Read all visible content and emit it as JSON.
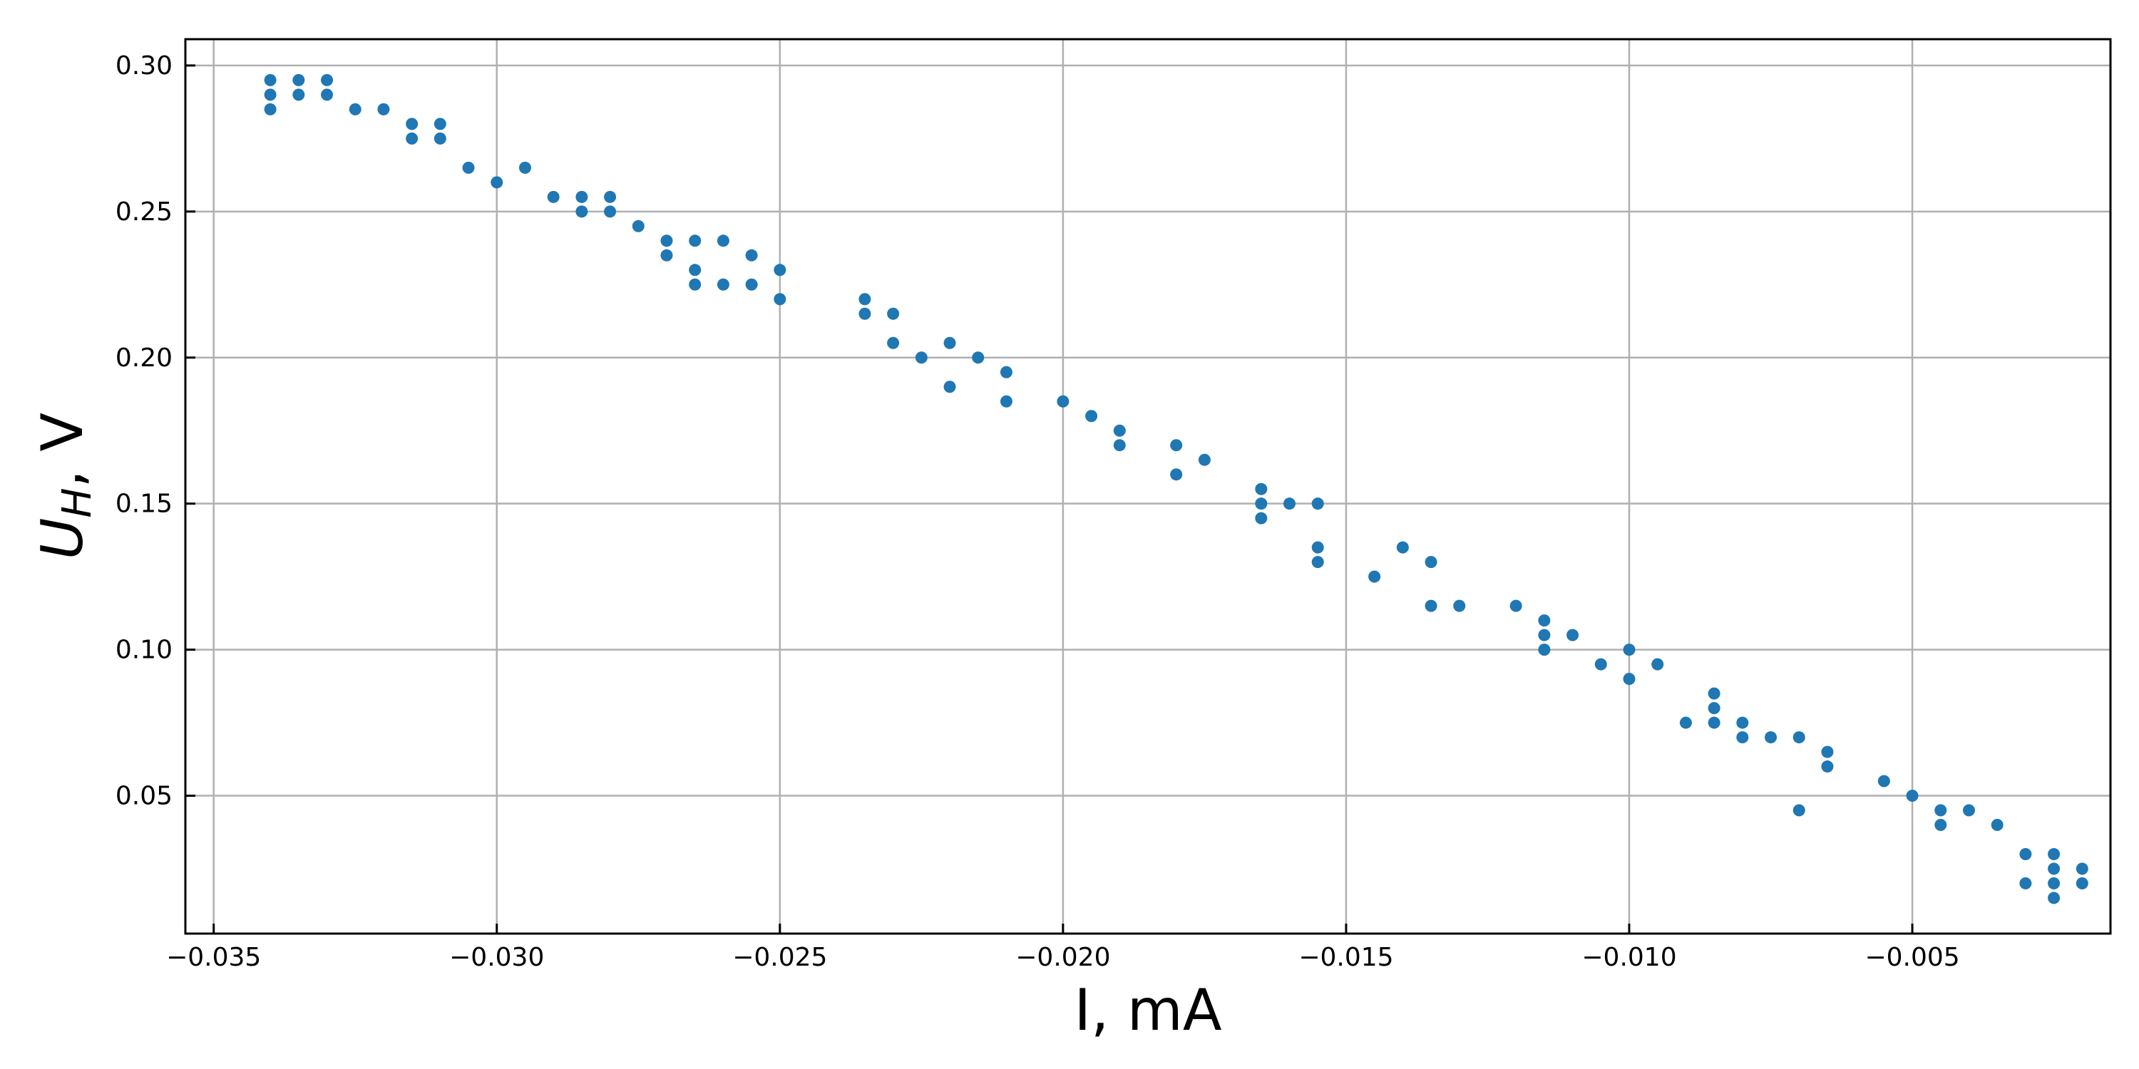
{
  "chart_data": {
    "type": "scatter",
    "xlabel": "I, mA",
    "ylabel": {
      "main": "U",
      "subscript": "H",
      "suffix": ", V"
    },
    "xlim": [
      -0.0355,
      -0.0015
    ],
    "ylim": [
      0.0028,
      0.309
    ],
    "xticks": [
      -0.035,
      -0.03,
      -0.025,
      -0.02,
      -0.015,
      -0.01,
      -0.005
    ],
    "xtick_labels": [
      "−0.035",
      "−0.030",
      "−0.025",
      "−0.020",
      "−0.015",
      "−0.010",
      "−0.005"
    ],
    "yticks": [
      0.05,
      0.1,
      0.15,
      0.2,
      0.25,
      0.3
    ],
    "ytick_labels": [
      "0.05",
      "0.10",
      "0.15",
      "0.20",
      "0.25",
      "0.30"
    ],
    "grid": true,
    "marker_color": "#1f77b4",
    "points": [
      [
        -0.034,
        0.295
      ],
      [
        -0.034,
        0.29
      ],
      [
        -0.034,
        0.285
      ],
      [
        -0.0335,
        0.295
      ],
      [
        -0.0335,
        0.29
      ],
      [
        -0.033,
        0.295
      ],
      [
        -0.033,
        0.29
      ],
      [
        -0.0325,
        0.285
      ],
      [
        -0.032,
        0.285
      ],
      [
        -0.0315,
        0.28
      ],
      [
        -0.0315,
        0.275
      ],
      [
        -0.031,
        0.28
      ],
      [
        -0.031,
        0.275
      ],
      [
        -0.0305,
        0.265
      ],
      [
        -0.03,
        0.26
      ],
      [
        -0.0295,
        0.265
      ],
      [
        -0.029,
        0.255
      ],
      [
        -0.0285,
        0.255
      ],
      [
        -0.0285,
        0.25
      ],
      [
        -0.028,
        0.255
      ],
      [
        -0.028,
        0.25
      ],
      [
        -0.0275,
        0.245
      ],
      [
        -0.027,
        0.24
      ],
      [
        -0.027,
        0.235
      ],
      [
        -0.0265,
        0.24
      ],
      [
        -0.0265,
        0.23
      ],
      [
        -0.0265,
        0.225
      ],
      [
        -0.026,
        0.24
      ],
      [
        -0.026,
        0.225
      ],
      [
        -0.0255,
        0.235
      ],
      [
        -0.0255,
        0.225
      ],
      [
        -0.025,
        0.23
      ],
      [
        -0.025,
        0.22
      ],
      [
        -0.0235,
        0.22
      ],
      [
        -0.0235,
        0.215
      ],
      [
        -0.023,
        0.215
      ],
      [
        -0.023,
        0.205
      ],
      [
        -0.0225,
        0.2
      ],
      [
        -0.022,
        0.205
      ],
      [
        -0.022,
        0.19
      ],
      [
        -0.0215,
        0.2
      ],
      [
        -0.021,
        0.195
      ],
      [
        -0.021,
        0.185
      ],
      [
        -0.02,
        0.185
      ],
      [
        -0.0195,
        0.18
      ],
      [
        -0.019,
        0.175
      ],
      [
        -0.019,
        0.17
      ],
      [
        -0.018,
        0.17
      ],
      [
        -0.018,
        0.16
      ],
      [
        -0.0175,
        0.165
      ],
      [
        -0.0165,
        0.155
      ],
      [
        -0.0165,
        0.15
      ],
      [
        -0.0165,
        0.145
      ],
      [
        -0.016,
        0.15
      ],
      [
        -0.0155,
        0.15
      ],
      [
        -0.0155,
        0.135
      ],
      [
        -0.0155,
        0.13
      ],
      [
        -0.0145,
        0.125
      ],
      [
        -0.014,
        0.135
      ],
      [
        -0.0135,
        0.13
      ],
      [
        -0.0135,
        0.115
      ],
      [
        -0.013,
        0.115
      ],
      [
        -0.012,
        0.115
      ],
      [
        -0.0115,
        0.11
      ],
      [
        -0.0115,
        0.105
      ],
      [
        -0.0115,
        0.1
      ],
      [
        -0.011,
        0.105
      ],
      [
        -0.0105,
        0.095
      ],
      [
        -0.01,
        0.1
      ],
      [
        -0.01,
        0.09
      ],
      [
        -0.0095,
        0.095
      ],
      [
        -0.009,
        0.075
      ],
      [
        -0.0085,
        0.085
      ],
      [
        -0.0085,
        0.08
      ],
      [
        -0.0085,
        0.075
      ],
      [
        -0.008,
        0.075
      ],
      [
        -0.008,
        0.07
      ],
      [
        -0.0075,
        0.07
      ],
      [
        -0.007,
        0.07
      ],
      [
        -0.007,
        0.045
      ],
      [
        -0.0065,
        0.065
      ],
      [
        -0.0065,
        0.06
      ],
      [
        -0.0055,
        0.055
      ],
      [
        -0.005,
        0.05
      ],
      [
        -0.0045,
        0.045
      ],
      [
        -0.0045,
        0.04
      ],
      [
        -0.004,
        0.045
      ],
      [
        -0.0035,
        0.04
      ],
      [
        -0.003,
        0.03
      ],
      [
        -0.003,
        0.02
      ],
      [
        -0.0025,
        0.03
      ],
      [
        -0.0025,
        0.025
      ],
      [
        -0.0025,
        0.02
      ],
      [
        -0.0025,
        0.015
      ],
      [
        -0.002,
        0.025
      ],
      [
        -0.002,
        0.02
      ]
    ]
  }
}
